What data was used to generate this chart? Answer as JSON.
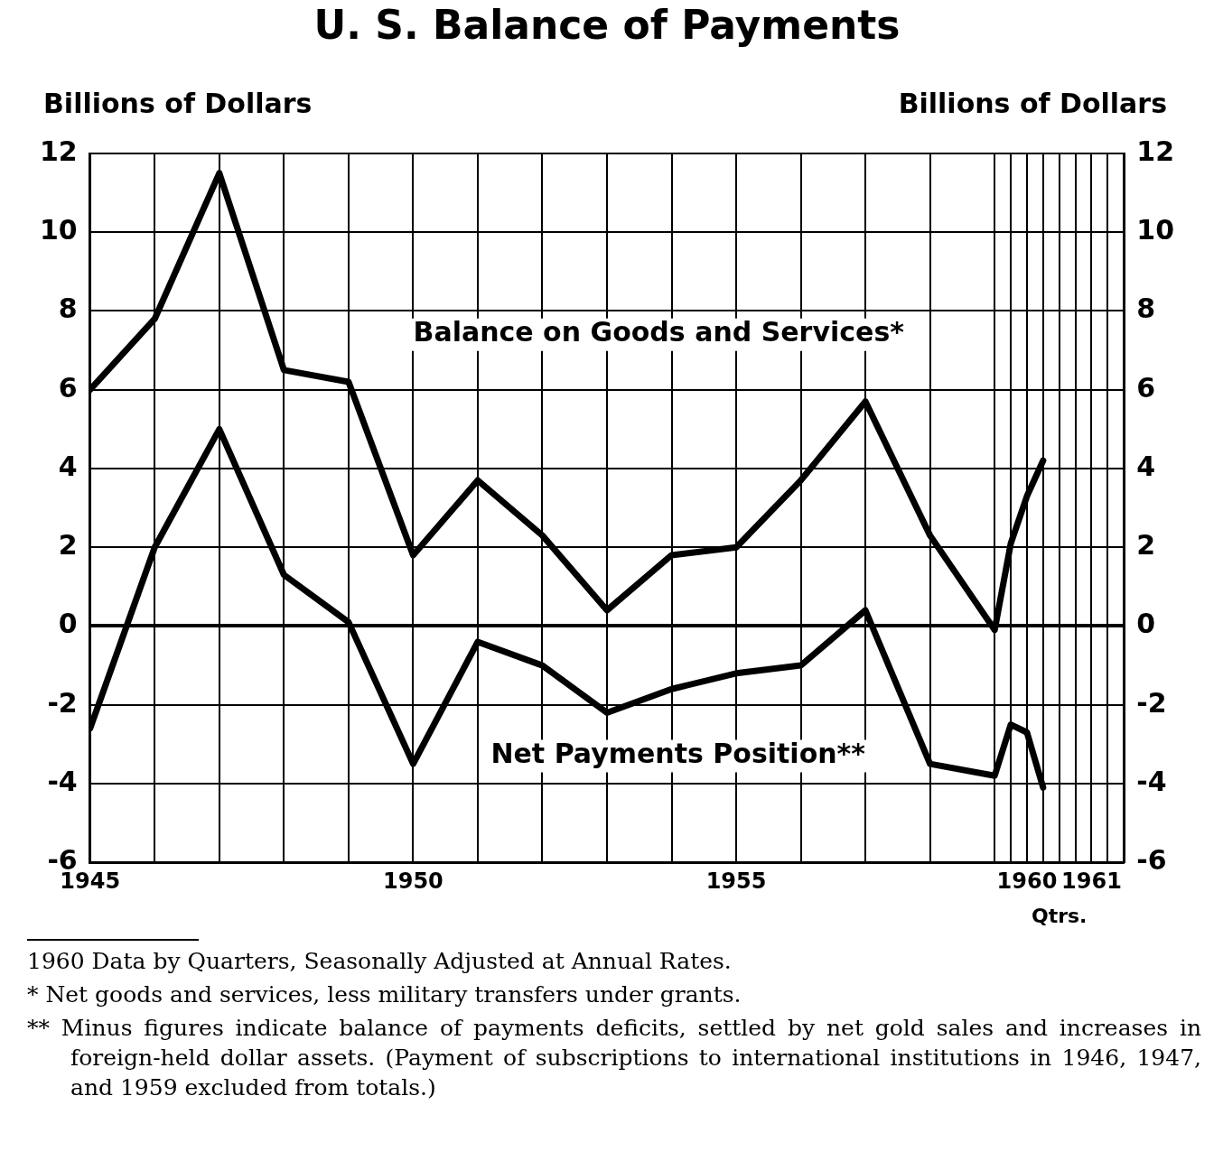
{
  "chart_data": {
    "type": "line",
    "title": "U. S. Balance of Payments",
    "ylabel": "Billions of Dollars",
    "y2label": "Billions of Dollars",
    "x": [
      1945,
      1946,
      1947,
      1948,
      1949,
      1950,
      1951,
      1952,
      1953,
      1954,
      1955,
      1956,
      1957,
      1958,
      1959,
      1959.25,
      1959.5,
      1959.75
    ],
    "series": [
      {
        "name": "Balance on Goods and Services*",
        "color": "#000000",
        "values": [
          6.0,
          7.8,
          11.5,
          6.5,
          6.2,
          1.8,
          3.7,
          2.3,
          0.4,
          1.8,
          2.0,
          3.7,
          5.7,
          2.3,
          -0.1,
          2.1,
          3.3,
          4.2
        ]
      },
      {
        "name": "Net Payments Position**",
        "color": "#000000",
        "values": [
          -2.6,
          2.0,
          5.0,
          1.3,
          0.1,
          -3.5,
          -0.4,
          -1.0,
          -2.2,
          -1.6,
          -1.2,
          -1.0,
          0.4,
          -3.5,
          -3.8,
          -2.5,
          -2.7,
          -4.1
        ]
      }
    ],
    "xlim": [
      1945,
      1961
    ],
    "xticks": [
      1945,
      {
        "value": 1946,
        "label": null
      },
      {
        "value": 1947,
        "label": null
      },
      {
        "value": 1948,
        "label": null
      },
      {
        "value": 1949,
        "label": null
      },
      1950,
      {
        "value": 1951,
        "label": null
      },
      {
        "value": 1952,
        "label": null
      },
      {
        "value": 1953,
        "label": null
      },
      {
        "value": 1954,
        "label": null
      },
      1955,
      {
        "value": 1956,
        "label": null
      },
      {
        "value": 1957,
        "label": null
      },
      {
        "value": 1958,
        "label": null
      },
      {
        "value": 1959,
        "label": null
      },
      {
        "value": 1959.25,
        "label": null
      },
      {
        "value": 1959.5,
        "label": "1960"
      },
      {
        "value": 1959.75,
        "label": null
      },
      {
        "value": 1960,
        "label": null
      },
      {
        "value": 1960.25,
        "label": null
      },
      {
        "value": 1960.5,
        "label": "1961"
      },
      {
        "value": 1960.75,
        "label": null
      },
      {
        "value": 1961,
        "label": null
      }
    ],
    "ylim": [
      -6,
      12
    ],
    "yticks": [
      -6,
      -4,
      -2,
      0,
      2,
      4,
      6,
      8,
      10,
      12
    ],
    "y2lim": [
      -6,
      12
    ],
    "y2ticks": [
      -6,
      -4,
      -2,
      0,
      2,
      4,
      6,
      8,
      10,
      12
    ],
    "grid": true,
    "legend": false,
    "marker": "none",
    "line_style": "solid",
    "annotations": [
      "Qtrs.",
      "1960 Data by Quarters, Seasonally Adjusted at Annual Rates.",
      "* Net goods and services, less military transfers under grants.",
      "** Minus figures indicate balance of payments deficits, settled by net gold sales and increases in foreign-held dollar assets. (Payment of subscriptions to international institutions in 1946, 1947, and 1959 excluded from totals.)"
    ]
  }
}
